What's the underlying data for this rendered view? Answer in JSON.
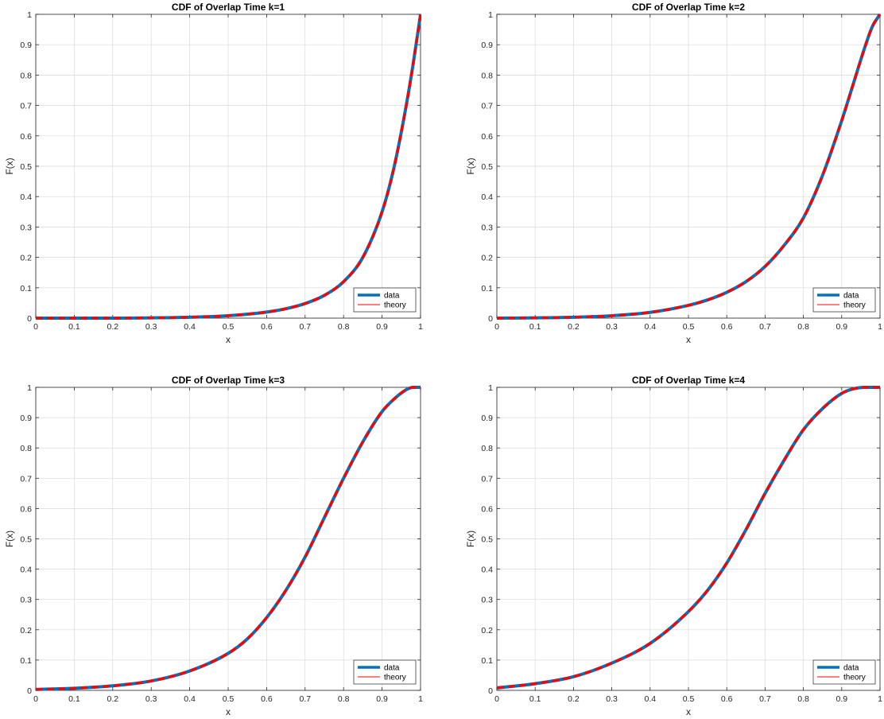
{
  "chart_data": [
    {
      "type": "line",
      "title": "CDF of Overlap Time k=1",
      "xlabel": "x",
      "ylabel": "F(x)",
      "xlim": [
        0,
        1
      ],
      "ylim": [
        0,
        1
      ],
      "xticks": [
        "0",
        "0.1",
        "0.2",
        "0.3",
        "0.4",
        "0.5",
        "0.6",
        "0.7",
        "0.8",
        "0.9",
        "1"
      ],
      "yticks": [
        "0",
        "0.1",
        "0.2",
        "0.3",
        "0.4",
        "0.5",
        "0.6",
        "0.7",
        "0.8",
        "0.9",
        "1"
      ],
      "grid": true,
      "legend_position": "bottom-right",
      "x": [
        0,
        0.1,
        0.2,
        0.3,
        0.4,
        0.5,
        0.55,
        0.6,
        0.65,
        0.7,
        0.75,
        0.8,
        0.85,
        0.9,
        0.93,
        0.96,
        0.98,
        1.0
      ],
      "series": [
        {
          "name": "data",
          "color": "#0072BD",
          "style": "solid-thick",
          "values": [
            0,
            0,
            0,
            0.001,
            0.003,
            0.008,
            0.013,
            0.02,
            0.031,
            0.048,
            0.075,
            0.12,
            0.2,
            0.35,
            0.49,
            0.68,
            0.83,
            1.0
          ]
        },
        {
          "name": "theory",
          "color": "#FF0000",
          "style": "dashed",
          "values": [
            0,
            0,
            0,
            0.001,
            0.003,
            0.008,
            0.013,
            0.02,
            0.031,
            0.048,
            0.075,
            0.12,
            0.2,
            0.35,
            0.49,
            0.68,
            0.83,
            1.0
          ]
        }
      ]
    },
    {
      "type": "line",
      "title": "CDF of Overlap Time k=2",
      "xlabel": "x",
      "ylabel": "F(x)",
      "xlim": [
        0,
        1
      ],
      "ylim": [
        0,
        1
      ],
      "xticks": [
        "0",
        "0.1",
        "0.2",
        "0.3",
        "0.4",
        "0.5",
        "0.6",
        "0.7",
        "0.8",
        "0.9",
        "1"
      ],
      "yticks": [
        "0",
        "0.1",
        "0.2",
        "0.3",
        "0.4",
        "0.5",
        "0.6",
        "0.7",
        "0.8",
        "0.9",
        "1"
      ],
      "grid": true,
      "legend_position": "bottom-right",
      "x": [
        0,
        0.1,
        0.2,
        0.3,
        0.4,
        0.5,
        0.55,
        0.6,
        0.65,
        0.7,
        0.75,
        0.8,
        0.85,
        0.9,
        0.93,
        0.96,
        0.98,
        1.0
      ],
      "series": [
        {
          "name": "data",
          "color": "#0072BD",
          "style": "solid-thick",
          "values": [
            0,
            0.001,
            0.003,
            0.008,
            0.019,
            0.042,
            0.06,
            0.085,
            0.12,
            0.17,
            0.24,
            0.33,
            0.47,
            0.65,
            0.77,
            0.89,
            0.96,
            1.0
          ]
        },
        {
          "name": "theory",
          "color": "#FF0000",
          "style": "dashed",
          "values": [
            0,
            0.001,
            0.003,
            0.008,
            0.019,
            0.042,
            0.06,
            0.085,
            0.12,
            0.17,
            0.24,
            0.33,
            0.47,
            0.65,
            0.77,
            0.89,
            0.96,
            1.0
          ]
        }
      ]
    },
    {
      "type": "line",
      "title": "CDF of Overlap Time k=3",
      "xlabel": "x",
      "ylabel": "F(x)",
      "xlim": [
        0,
        1
      ],
      "ylim": [
        0,
        1
      ],
      "xticks": [
        "0",
        "0.1",
        "0.2",
        "0.3",
        "0.4",
        "0.5",
        "0.6",
        "0.7",
        "0.8",
        "0.9",
        "1"
      ],
      "yticks": [
        "0",
        "0.1",
        "0.2",
        "0.3",
        "0.4",
        "0.5",
        "0.6",
        "0.7",
        "0.8",
        "0.9",
        "1"
      ],
      "grid": true,
      "legend_position": "bottom-right",
      "x": [
        0,
        0.1,
        0.2,
        0.3,
        0.4,
        0.5,
        0.55,
        0.6,
        0.65,
        0.7,
        0.75,
        0.8,
        0.85,
        0.9,
        0.93,
        0.96,
        0.98,
        1.0
      ],
      "series": [
        {
          "name": "data",
          "color": "#0072BD",
          "style": "solid-thick",
          "values": [
            0.003,
            0.007,
            0.015,
            0.031,
            0.064,
            0.122,
            0.17,
            0.24,
            0.33,
            0.44,
            0.57,
            0.7,
            0.82,
            0.92,
            0.96,
            0.99,
            1.0,
            1.0
          ]
        },
        {
          "name": "theory",
          "color": "#FF0000",
          "style": "dashed",
          "values": [
            0.003,
            0.007,
            0.015,
            0.031,
            0.064,
            0.122,
            0.17,
            0.24,
            0.33,
            0.44,
            0.57,
            0.7,
            0.82,
            0.92,
            0.96,
            0.99,
            1.0,
            1.0
          ]
        }
      ]
    },
    {
      "type": "line",
      "title": "CDF of Overlap Time k=4",
      "xlabel": "x",
      "ylabel": "F(x)",
      "xlim": [
        0,
        1
      ],
      "ylim": [
        0,
        1
      ],
      "xticks": [
        "0",
        "0.1",
        "0.2",
        "0.3",
        "0.4",
        "0.5",
        "0.6",
        "0.7",
        "0.8",
        "0.9",
        "1"
      ],
      "yticks": [
        "0",
        "0.1",
        "0.2",
        "0.3",
        "0.4",
        "0.5",
        "0.6",
        "0.7",
        "0.8",
        "0.9",
        "1"
      ],
      "grid": true,
      "legend_position": "bottom-right",
      "x": [
        0,
        0.1,
        0.2,
        0.3,
        0.4,
        0.5,
        0.55,
        0.6,
        0.65,
        0.7,
        0.75,
        0.8,
        0.85,
        0.9,
        0.93,
        0.96,
        0.98,
        1.0
      ],
      "series": [
        {
          "name": "data",
          "color": "#0072BD",
          "style": "solid-thick",
          "values": [
            0.008,
            0.022,
            0.045,
            0.09,
            0.155,
            0.26,
            0.33,
            0.42,
            0.53,
            0.65,
            0.76,
            0.86,
            0.93,
            0.98,
            0.995,
            1.0,
            1.0,
            1.0
          ]
        },
        {
          "name": "theory",
          "color": "#FF0000",
          "style": "dashed",
          "values": [
            0.008,
            0.022,
            0.045,
            0.09,
            0.155,
            0.26,
            0.33,
            0.42,
            0.53,
            0.65,
            0.76,
            0.86,
            0.93,
            0.98,
            0.995,
            1.0,
            1.0,
            1.0
          ]
        }
      ]
    }
  ]
}
